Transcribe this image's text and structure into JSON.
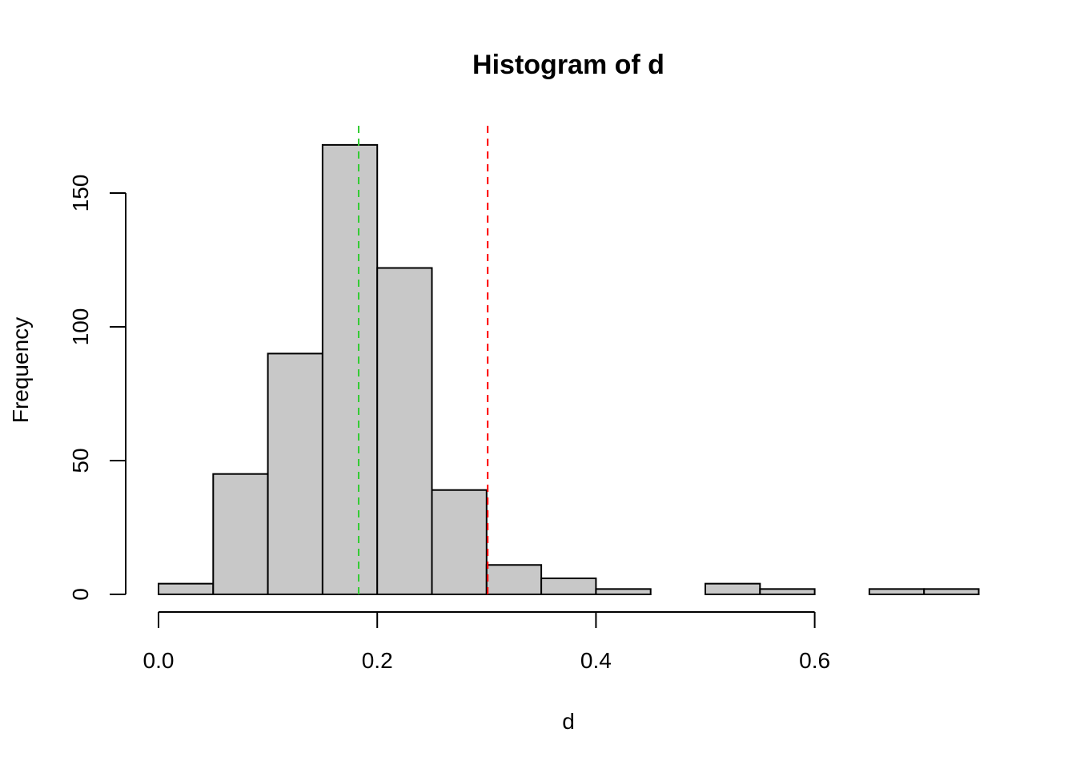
{
  "chart_data": {
    "type": "bar",
    "title": "Histogram of d",
    "xlabel": "d",
    "ylabel": "Frequency",
    "bins": [
      {
        "start": 0.0,
        "end": 0.05,
        "count": 4
      },
      {
        "start": 0.05,
        "end": 0.1,
        "count": 45
      },
      {
        "start": 0.1,
        "end": 0.15,
        "count": 90
      },
      {
        "start": 0.15,
        "end": 0.2,
        "count": 168
      },
      {
        "start": 0.2,
        "end": 0.25,
        "count": 122
      },
      {
        "start": 0.25,
        "end": 0.3,
        "count": 39
      },
      {
        "start": 0.3,
        "end": 0.35,
        "count": 11
      },
      {
        "start": 0.35,
        "end": 0.4,
        "count": 6
      },
      {
        "start": 0.4,
        "end": 0.45,
        "count": 2
      },
      {
        "start": 0.45,
        "end": 0.5,
        "count": 0
      },
      {
        "start": 0.5,
        "end": 0.55,
        "count": 4
      },
      {
        "start": 0.55,
        "end": 0.6,
        "count": 2
      },
      {
        "start": 0.6,
        "end": 0.65,
        "count": 0
      },
      {
        "start": 0.65,
        "end": 0.7,
        "count": 2
      },
      {
        "start": 0.7,
        "end": 0.75,
        "count": 2
      }
    ],
    "x_ticks": [
      {
        "value": 0.0,
        "label": "0.0"
      },
      {
        "value": 0.2,
        "label": "0.2"
      },
      {
        "value": 0.4,
        "label": "0.4"
      },
      {
        "value": 0.6,
        "label": "0.6"
      }
    ],
    "y_ticks": [
      {
        "value": 0,
        "label": "0"
      },
      {
        "value": 50,
        "label": "50"
      },
      {
        "value": 100,
        "label": "100"
      },
      {
        "value": 150,
        "label": "150"
      }
    ],
    "xlim": [
      0.0,
      0.75
    ],
    "ylim": [
      0,
      175
    ],
    "grid": false,
    "reference_lines": [
      {
        "x": 0.183,
        "color": "#33cc33",
        "style": "dashed"
      },
      {
        "x": 0.301,
        "color": "#ff0000",
        "style": "dashed"
      }
    ]
  }
}
